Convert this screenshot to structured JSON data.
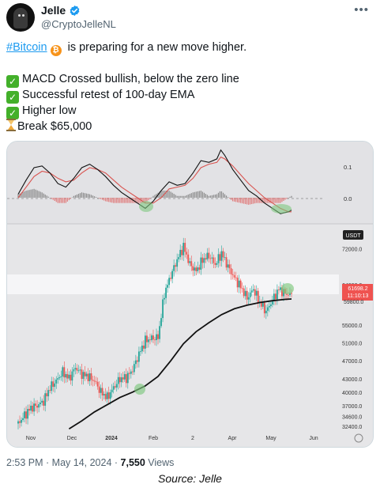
{
  "author": {
    "display_name": "Jelle",
    "handle": "@CryptoJelleNL",
    "verified": true,
    "avatar_icon": "hooded-figure-avatar"
  },
  "tweet": {
    "hashtag": "#Bitcoin",
    "line1_rest": " is preparing for a new move higher.",
    "bullets": [
      {
        "icon": "check-mark-icon",
        "text": "MACD Crossed bullish, below the zero line"
      },
      {
        "icon": "check-mark-icon",
        "text": "Successful retest of 100-day EMA"
      },
      {
        "icon": "check-mark-icon",
        "text": "Higher low"
      },
      {
        "icon": "hourglass-icon",
        "text": "Break $65,000"
      }
    ]
  },
  "chart": {
    "pair_badge": "USDT",
    "macd_levels": [
      "0.1",
      "0.0"
    ],
    "price_levels": [
      "72000.0",
      "64000.0",
      "55000.0",
      "51000.0",
      "47000.0",
      "43000.0",
      "40000.0",
      "37000.0",
      "34600.0",
      "32400.0"
    ],
    "x_labels": [
      "Nov",
      "Dec",
      "2024",
      "Feb",
      "2",
      "Apr",
      "May",
      "Jun"
    ],
    "current_price": "61698.2",
    "countdown": "11:10:13",
    "price_hidden_label": "59800.0",
    "colors": {
      "up": "#26a69a",
      "down": "#ef5350",
      "ema": "#111111",
      "band": "#f5f5f7",
      "highlight": "#7ec87e"
    }
  },
  "chart_data": {
    "type": "candlestick",
    "title": "",
    "x_ticks": [
      "Nov",
      "Dec",
      "2024",
      "Feb",
      "2",
      "Apr",
      "May",
      "Jun"
    ],
    "ylim": [
      31500,
      76500
    ],
    "y_ticks": [
      72000,
      64000,
      55000,
      51000,
      47000,
      43000,
      40000,
      37000,
      34600,
      32400
    ],
    "resistance_band": [
      59800,
      65000
    ],
    "last_price": 61698.2,
    "price_path": [
      [
        0,
        33000
      ],
      [
        8,
        34800
      ],
      [
        16,
        36500
      ],
      [
        24,
        37000
      ],
      [
        32,
        38000
      ],
      [
        40,
        41000
      ],
      [
        48,
        42500
      ],
      [
        56,
        44500
      ],
      [
        64,
        43000
      ],
      [
        72,
        45500
      ],
      [
        80,
        44000
      ],
      [
        88,
        43500
      ],
      [
        96,
        42500
      ],
      [
        104,
        40000
      ],
      [
        112,
        38800
      ],
      [
        120,
        41000
      ],
      [
        128,
        43000
      ],
      [
        136,
        43200
      ],
      [
        144,
        45000
      ],
      [
        152,
        48500
      ],
      [
        160,
        51500
      ],
      [
        168,
        52000
      ],
      [
        176,
        52200
      ],
      [
        184,
        62000
      ],
      [
        192,
        66000
      ],
      [
        200,
        69500
      ],
      [
        208,
        72500
      ],
      [
        216,
        68500
      ],
      [
        224,
        67000
      ],
      [
        232,
        69500
      ],
      [
        240,
        70500
      ],
      [
        248,
        68500
      ],
      [
        256,
        71000
      ],
      [
        264,
        68000
      ],
      [
        272,
        65500
      ],
      [
        280,
        63500
      ],
      [
        288,
        61000
      ],
      [
        296,
        63000
      ],
      [
        304,
        60000
      ],
      [
        312,
        58000
      ],
      [
        320,
        60500
      ],
      [
        328,
        63000
      ],
      [
        336,
        62000
      ],
      [
        344,
        61698
      ]
    ],
    "ema100": [
      [
        64,
        31800
      ],
      [
        80,
        33600
      ],
      [
        96,
        35600
      ],
      [
        112,
        37200
      ],
      [
        128,
        38800
      ],
      [
        144,
        40000
      ],
      [
        160,
        41400
      ],
      [
        176,
        43500
      ],
      [
        192,
        47000
      ],
      [
        208,
        50800
      ],
      [
        224,
        53500
      ],
      [
        240,
        55500
      ],
      [
        256,
        57300
      ],
      [
        272,
        58600
      ],
      [
        288,
        59400
      ],
      [
        304,
        60000
      ],
      [
        320,
        60400
      ],
      [
        336,
        60700
      ],
      [
        344,
        60800
      ]
    ],
    "macd_line": [
      [
        0,
        0.01
      ],
      [
        10,
        0.05
      ],
      [
        20,
        0.085
      ],
      [
        30,
        0.09
      ],
      [
        40,
        0.07
      ],
      [
        50,
        0.04
      ],
      [
        60,
        0.03
      ],
      [
        70,
        0.055
      ],
      [
        80,
        0.085
      ],
      [
        90,
        0.095
      ],
      [
        100,
        0.08
      ],
      [
        110,
        0.06
      ],
      [
        120,
        0.035
      ],
      [
        130,
        0.015
      ],
      [
        140,
        0.0
      ],
      [
        150,
        -0.015
      ],
      [
        160,
        -0.03
      ],
      [
        170,
        -0.01
      ],
      [
        180,
        0.02
      ],
      [
        190,
        0.045
      ],
      [
        200,
        0.035
      ],
      [
        210,
        0.04
      ],
      [
        220,
        0.07
      ],
      [
        230,
        0.105
      ],
      [
        240,
        0.1
      ],
      [
        250,
        0.11
      ],
      [
        255,
        0.135
      ],
      [
        260,
        0.12
      ],
      [
        270,
        0.08
      ],
      [
        280,
        0.05
      ],
      [
        290,
        0.02
      ],
      [
        300,
        0.005
      ],
      [
        310,
        -0.015
      ],
      [
        320,
        -0.03
      ],
      [
        330,
        -0.045
      ],
      [
        340,
        -0.04
      ],
      [
        344,
        -0.035
      ]
    ],
    "signal_line": [
      [
        0,
        0.0
      ],
      [
        10,
        0.03
      ],
      [
        20,
        0.06
      ],
      [
        30,
        0.075
      ],
      [
        40,
        0.07
      ],
      [
        50,
        0.055
      ],
      [
        60,
        0.045
      ],
      [
        70,
        0.05
      ],
      [
        80,
        0.07
      ],
      [
        90,
        0.085
      ],
      [
        100,
        0.08
      ],
      [
        110,
        0.07
      ],
      [
        120,
        0.05
      ],
      [
        130,
        0.03
      ],
      [
        140,
        0.015
      ],
      [
        150,
        0.0
      ],
      [
        160,
        -0.015
      ],
      [
        170,
        -0.015
      ],
      [
        180,
        0.0
      ],
      [
        190,
        0.025
      ],
      [
        200,
        0.03
      ],
      [
        210,
        0.035
      ],
      [
        220,
        0.055
      ],
      [
        230,
        0.085
      ],
      [
        240,
        0.095
      ],
      [
        250,
        0.1
      ],
      [
        255,
        0.115
      ],
      [
        260,
        0.11
      ],
      [
        270,
        0.09
      ],
      [
        280,
        0.065
      ],
      [
        290,
        0.04
      ],
      [
        300,
        0.02
      ],
      [
        310,
        0.0
      ],
      [
        320,
        -0.015
      ],
      [
        330,
        -0.03
      ],
      [
        340,
        -0.04
      ],
      [
        344,
        -0.04
      ]
    ],
    "macd_ylim": [
      -0.065,
      0.15
    ]
  },
  "meta": {
    "time": "2:53 PM",
    "separator": " · ",
    "date": "May 14, 2024",
    "views_count": "7,550",
    "views_label": " Views"
  },
  "caption": "Source: Jelle"
}
